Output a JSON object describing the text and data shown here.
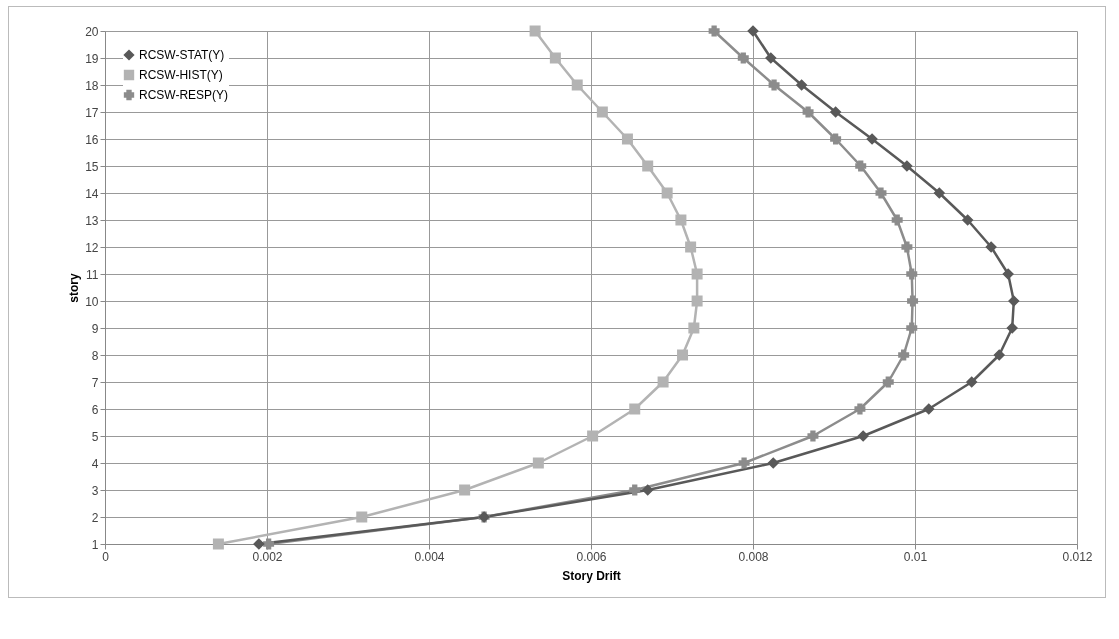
{
  "chart_data": {
    "type": "line",
    "xlabel": "Story Drift",
    "ylabel": "story",
    "xlim": [
      0,
      0.012
    ],
    "xticks": [
      0,
      0.002,
      0.004,
      0.006,
      0.008,
      0.01,
      0.012
    ],
    "ylim": [
      1,
      20
    ],
    "yticks": [
      1,
      2,
      3,
      4,
      5,
      6,
      7,
      8,
      9,
      10,
      11,
      12,
      13,
      14,
      15,
      16,
      17,
      18,
      19,
      20
    ],
    "grid": true,
    "legend": "top left",
    "line_style": "solid",
    "series": [
      {
        "name": "RCSW-STAT(Y)",
        "color": "#595959",
        "marker": "diamond",
        "x": [
          0.0019,
          0.00468,
          0.0067,
          0.00825,
          0.00936,
          0.01017,
          0.0107,
          0.01104,
          0.0112,
          0.01122,
          0.01115,
          0.01094,
          0.01065,
          0.0103,
          0.0099,
          0.00947,
          0.00902,
          0.0086,
          0.00822,
          0.008
        ],
        "values": [
          1,
          2,
          3,
          4,
          5,
          6,
          7,
          8,
          9,
          10,
          11,
          12,
          13,
          14,
          15,
          16,
          17,
          18,
          19,
          20
        ]
      },
      {
        "name": "RCSW-HIST(Y)",
        "color": "#b3b3b3",
        "marker": "square",
        "x": [
          0.0014,
          0.00317,
          0.00444,
          0.00535,
          0.00602,
          0.00654,
          0.00689,
          0.00713,
          0.00727,
          0.00731,
          0.00731,
          0.00723,
          0.00711,
          0.00694,
          0.0067,
          0.00645,
          0.00614,
          0.00583,
          0.00556,
          0.00531
        ],
        "values": [
          1,
          2,
          3,
          4,
          5,
          6,
          7,
          8,
          9,
          10,
          11,
          12,
          13,
          14,
          15,
          16,
          17,
          18,
          19,
          20
        ]
      },
      {
        "name": "RCSW-RESP(Y)",
        "color": "#8c8c8c",
        "marker": "cross",
        "x": [
          0.00202,
          0.00468,
          0.00654,
          0.00789,
          0.00874,
          0.00932,
          0.00967,
          0.00986,
          0.00996,
          0.00997,
          0.00996,
          0.0099,
          0.00978,
          0.00958,
          0.00933,
          0.00902,
          0.00868,
          0.00826,
          0.00788,
          0.00752
        ],
        "values": [
          1,
          2,
          3,
          4,
          5,
          6,
          7,
          8,
          9,
          10,
          11,
          12,
          13,
          14,
          15,
          16,
          17,
          18,
          19,
          20
        ]
      }
    ]
  }
}
